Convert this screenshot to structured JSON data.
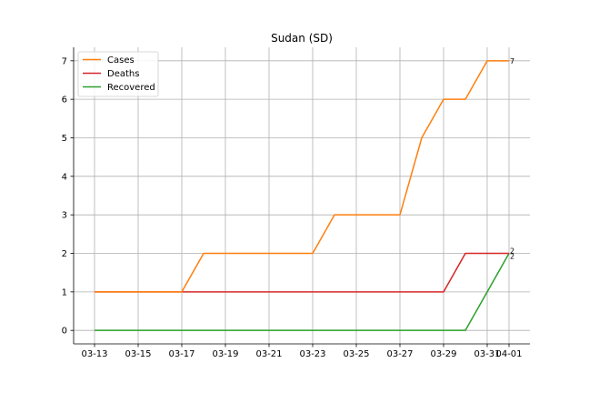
{
  "chart_data": {
    "type": "line",
    "title": "Sudan (SD)",
    "xlabel": "",
    "ylabel": "",
    "x": [
      "03-13",
      "03-14",
      "03-15",
      "03-16",
      "03-17",
      "03-18",
      "03-19",
      "03-20",
      "03-21",
      "03-22",
      "03-23",
      "03-24",
      "03-25",
      "03-26",
      "03-27",
      "03-28",
      "03-29",
      "03-30",
      "03-31",
      "04-01"
    ],
    "x_ticks": [
      "03-13",
      "03-15",
      "03-17",
      "03-19",
      "03-21",
      "03-23",
      "03-25",
      "03-27",
      "03-29",
      "03-31",
      "04-01"
    ],
    "y_ticks": [
      "0",
      "1",
      "2",
      "3",
      "4",
      "5",
      "6",
      "7"
    ],
    "ylim": [
      -0.35,
      7.35
    ],
    "grid": true,
    "legend_position": "top-left",
    "series": [
      {
        "name": "Cases",
        "color": "#ff7f0e",
        "values": [
          1,
          1,
          1,
          1,
          1,
          2,
          2,
          2,
          2,
          2,
          2,
          3,
          3,
          3,
          3,
          5,
          6,
          6,
          7,
          7
        ],
        "end_label": "7"
      },
      {
        "name": "Deaths",
        "color": "#d62728",
        "values": [
          1,
          1,
          1,
          1,
          1,
          1,
          1,
          1,
          1,
          1,
          1,
          1,
          1,
          1,
          1,
          1,
          1,
          2,
          2,
          2
        ],
        "end_label": "2"
      },
      {
        "name": "Recovered",
        "color": "#2ca02c",
        "values": [
          0,
          0,
          0,
          0,
          0,
          0,
          0,
          0,
          0,
          0,
          0,
          0,
          0,
          0,
          0,
          0,
          0,
          0,
          1,
          2
        ],
        "end_label": "2"
      }
    ]
  }
}
